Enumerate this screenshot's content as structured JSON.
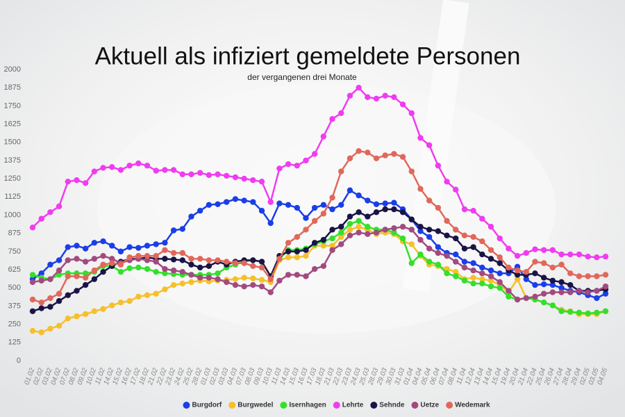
{
  "chart_data": {
    "type": "line",
    "title": "Aktuell als infiziert gemeldete Personen",
    "subtitle": "der vergangenen drei Monate",
    "categories": [
      "01.02",
      "02.02",
      "03.02",
      "04.02",
      "07.02",
      "08.02",
      "09.02",
      "10.02",
      "11.02",
      "14.02",
      "15.02",
      "16.02",
      "17.02",
      "18.02",
      "21.02",
      "22.02",
      "23.02",
      "24.02",
      "25.02",
      "28.02",
      "01.03",
      "02.03",
      "03.03",
      "04.03",
      "07.03",
      "08.03",
      "09.03",
      "10.03",
      "11.03",
      "14.03",
      "15.03",
      "16.03",
      "17.03",
      "18.03",
      "21.03",
      "22.03",
      "23.03",
      "24.03",
      "25.03",
      "28.03",
      "29.03",
      "30.03",
      "31.03",
      "01.04",
      "04.04",
      "05.04",
      "06.04",
      "07.04",
      "08.04",
      "11.04",
      "12.04",
      "13.04",
      "14.04",
      "15.04",
      "19.04",
      "20.04",
      "21.04",
      "22.04",
      "25.04",
      "26.04",
      "27.04",
      "28.04",
      "29.04",
      "02.05",
      "03.05",
      "04.05"
    ],
    "ylim": [
      0,
      2000
    ],
    "yticks": [
      0,
      125,
      250,
      375,
      500,
      625,
      750,
      875,
      1000,
      1125,
      1250,
      1375,
      1500,
      1625,
      1750,
      1875,
      2000
    ],
    "legend": "bottom",
    "series": [
      {
        "name": "Burgdorf",
        "color": "#1a3ee8",
        "values": [
          560,
          600,
          660,
          690,
          780,
          790,
          770,
          810,
          820,
          790,
          750,
          780,
          775,
          790,
          800,
          810,
          895,
          905,
          990,
          1030,
          1070,
          1075,
          1090,
          1110,
          1100,
          1090,
          1030,
          945,
          1080,
          1070,
          1050,
          980,
          1050,
          1070,
          1040,
          1070,
          1170,
          1135,
          1100,
          1075,
          1080,
          1085,
          1040,
          970,
          890,
          850,
          780,
          740,
          730,
          680,
          670,
          640,
          620,
          600,
          600,
          645,
          560,
          520,
          525,
          520,
          500,
          480,
          470,
          450,
          430,
          460
        ]
      },
      {
        "name": "Burgwedel",
        "color": "#f5c02a",
        "values": [
          205,
          195,
          220,
          240,
          290,
          305,
          320,
          340,
          355,
          380,
          400,
          410,
          440,
          450,
          460,
          490,
          520,
          530,
          540,
          550,
          545,
          550,
          555,
          560,
          570,
          565,
          555,
          540,
          690,
          710,
          710,
          720,
          790,
          790,
          790,
          850,
          900,
          920,
          900,
          870,
          880,
          870,
          820,
          800,
          720,
          660,
          650,
          630,
          610,
          560,
          570,
          560,
          550,
          520,
          470,
          560,
          430,
          420,
          400,
          380,
          350,
          340,
          320,
          320,
          320,
          340
        ]
      },
      {
        "name": "Isernhagen",
        "color": "#33e02a",
        "values": [
          590,
          570,
          560,
          590,
          600,
          600,
          600,
          610,
          650,
          650,
          610,
          635,
          640,
          630,
          610,
          600,
          595,
          590,
          590,
          590,
          590,
          600,
          640,
          660,
          680,
          690,
          680,
          580,
          700,
          760,
          760,
          770,
          800,
          820,
          840,
          880,
          940,
          960,
          920,
          900,
          900,
          880,
          840,
          670,
          730,
          680,
          660,
          600,
          580,
          550,
          530,
          530,
          510,
          500,
          440,
          420,
          430,
          420,
          400,
          380,
          340,
          335,
          330,
          325,
          330,
          340
        ]
      },
      {
        "name": "Lehrte",
        "color": "#f03cf0",
        "values": [
          915,
          975,
          1020,
          1060,
          1230,
          1240,
          1220,
          1300,
          1325,
          1330,
          1310,
          1340,
          1355,
          1340,
          1305,
          1310,
          1310,
          1280,
          1280,
          1290,
          1275,
          1280,
          1270,
          1260,
          1250,
          1240,
          1230,
          1090,
          1320,
          1350,
          1340,
          1375,
          1420,
          1540,
          1660,
          1700,
          1820,
          1875,
          1810,
          1800,
          1820,
          1810,
          1760,
          1700,
          1530,
          1480,
          1340,
          1230,
          1175,
          1040,
          1030,
          975,
          920,
          840,
          770,
          720,
          740,
          765,
          760,
          760,
          730,
          730,
          730,
          715,
          710,
          715
        ]
      },
      {
        "name": "Sehnde",
        "color": "#1a1446",
        "values": [
          340,
          360,
          370,
          410,
          450,
          480,
          520,
          560,
          610,
          650,
          680,
          700,
          700,
          710,
          700,
          700,
          695,
          690,
          660,
          640,
          650,
          680,
          660,
          680,
          690,
          690,
          680,
          580,
          720,
          750,
          750,
          760,
          810,
          830,
          900,
          920,
          990,
          1020,
          990,
          1020,
          1040,
          1040,
          1020,
          970,
          920,
          900,
          890,
          860,
          840,
          770,
          780,
          730,
          700,
          670,
          620,
          590,
          590,
          600,
          570,
          550,
          540,
          520,
          480,
          480,
          480,
          490
        ]
      },
      {
        "name": "Uetze",
        "color": "#a24a80",
        "values": [
          540,
          550,
          560,
          620,
          690,
          700,
          680,
          700,
          720,
          700,
          670,
          690,
          700,
          690,
          680,
          630,
          620,
          610,
          590,
          570,
          570,
          560,
          540,
          520,
          510,
          520,
          510,
          470,
          550,
          590,
          590,
          580,
          630,
          650,
          760,
          800,
          860,
          880,
          870,
          880,
          900,
          910,
          920,
          900,
          830,
          770,
          740,
          720,
          680,
          640,
          620,
          600,
          580,
          540,
          480,
          420,
          430,
          440,
          460,
          470,
          470,
          470,
          480,
          470,
          480,
          510
        ]
      },
      {
        "name": "Wedemark",
        "color": "#e0685a",
        "values": [
          420,
          400,
          430,
          460,
          580,
          580,
          570,
          620,
          660,
          670,
          660,
          710,
          720,
          720,
          720,
          760,
          740,
          740,
          700,
          700,
          690,
          690,
          680,
          670,
          670,
          650,
          640,
          560,
          700,
          810,
          850,
          900,
          960,
          1010,
          1120,
          1300,
          1390,
          1440,
          1430,
          1390,
          1410,
          1420,
          1400,
          1300,
          1180,
          1100,
          1050,
          960,
          900,
          860,
          850,
          820,
          760,
          710,
          640,
          620,
          610,
          680,
          670,
          640,
          660,
          600,
          580,
          580,
          580,
          590
        ]
      }
    ]
  }
}
